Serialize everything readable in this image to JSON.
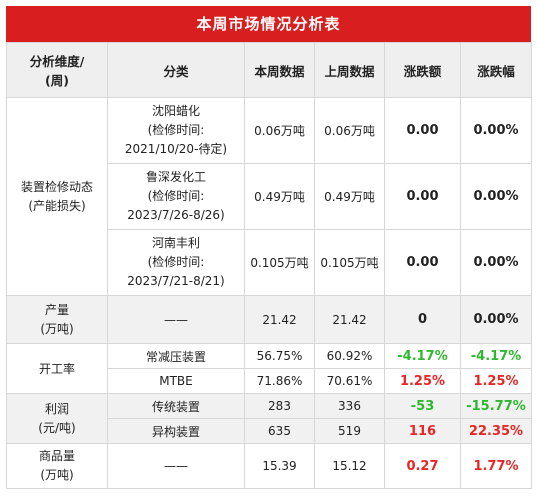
{
  "title": "本周市场情况分析表",
  "headers": {
    "dimension_line1": "分析维度/",
    "dimension_line2": "(周)",
    "category": "分类",
    "this_week": "本周数据",
    "last_week": "上周数据",
    "change_amount": "涨跌额",
    "change_pct": "涨跌幅"
  },
  "maintenance": {
    "dimension_line1": "装置检修动态",
    "dimension_line2": "(产能损失)",
    "rows": [
      {
        "company": "沈阳蜡化",
        "note": "(检修时间:",
        "date": "2021/10/20-待定)",
        "this_week": "0.06万吨",
        "last_week": "0.06万吨",
        "change_amount": "0.00",
        "change_pct": "0.00%"
      },
      {
        "company": "鲁深发化工",
        "note": "(检修时间:",
        "date": "2023/7/26-8/26)",
        "this_week": "0.49万吨",
        "last_week": "0.49万吨",
        "change_amount": "0.00",
        "change_pct": "0.00%"
      },
      {
        "company": "河南丰利",
        "note": "(检修时间:",
        "date": "2023/7/21-8/21)",
        "this_week": "0.105万吨",
        "last_week": "0.105万吨",
        "change_amount": "0.00",
        "change_pct": "0.00%"
      }
    ]
  },
  "output": {
    "dimension_line1": "产量",
    "dimension_line2": "(万吨)",
    "category": "——",
    "this_week": "21.42",
    "last_week": "21.42",
    "change_amount": "0",
    "change_pct": "0.00%"
  },
  "operating_rate": {
    "dimension": "开工率",
    "rows": [
      {
        "category": "常减压装置",
        "this_week": "56.75%",
        "last_week": "60.92%",
        "change_amount": "-4.17%",
        "change_pct": "-4.17%"
      },
      {
        "category": "MTBE",
        "this_week": "71.86%",
        "last_week": "70.61%",
        "change_amount": "1.25%",
        "change_pct": "1.25%"
      }
    ]
  },
  "profit": {
    "dimension_line1": "利润",
    "dimension_line2": "(元/吨)",
    "rows": [
      {
        "category": "传统装置",
        "this_week": "283",
        "last_week": "336",
        "change_amount": "-53",
        "change_pct": "-15.77%"
      },
      {
        "category": "异构装置",
        "this_week": "635",
        "last_week": "519",
        "change_amount": "116",
        "change_pct": "22.35%"
      }
    ]
  },
  "commodity": {
    "dimension_line1": "商品量",
    "dimension_line2": "(万吨)",
    "category": "——",
    "this_week": "15.39",
    "last_week": "15.12",
    "change_amount": "0.27",
    "change_pct": "1.77%"
  },
  "colors": {
    "header_red": "#d81e1e",
    "up": "#e62727",
    "down": "#2eb82e"
  }
}
